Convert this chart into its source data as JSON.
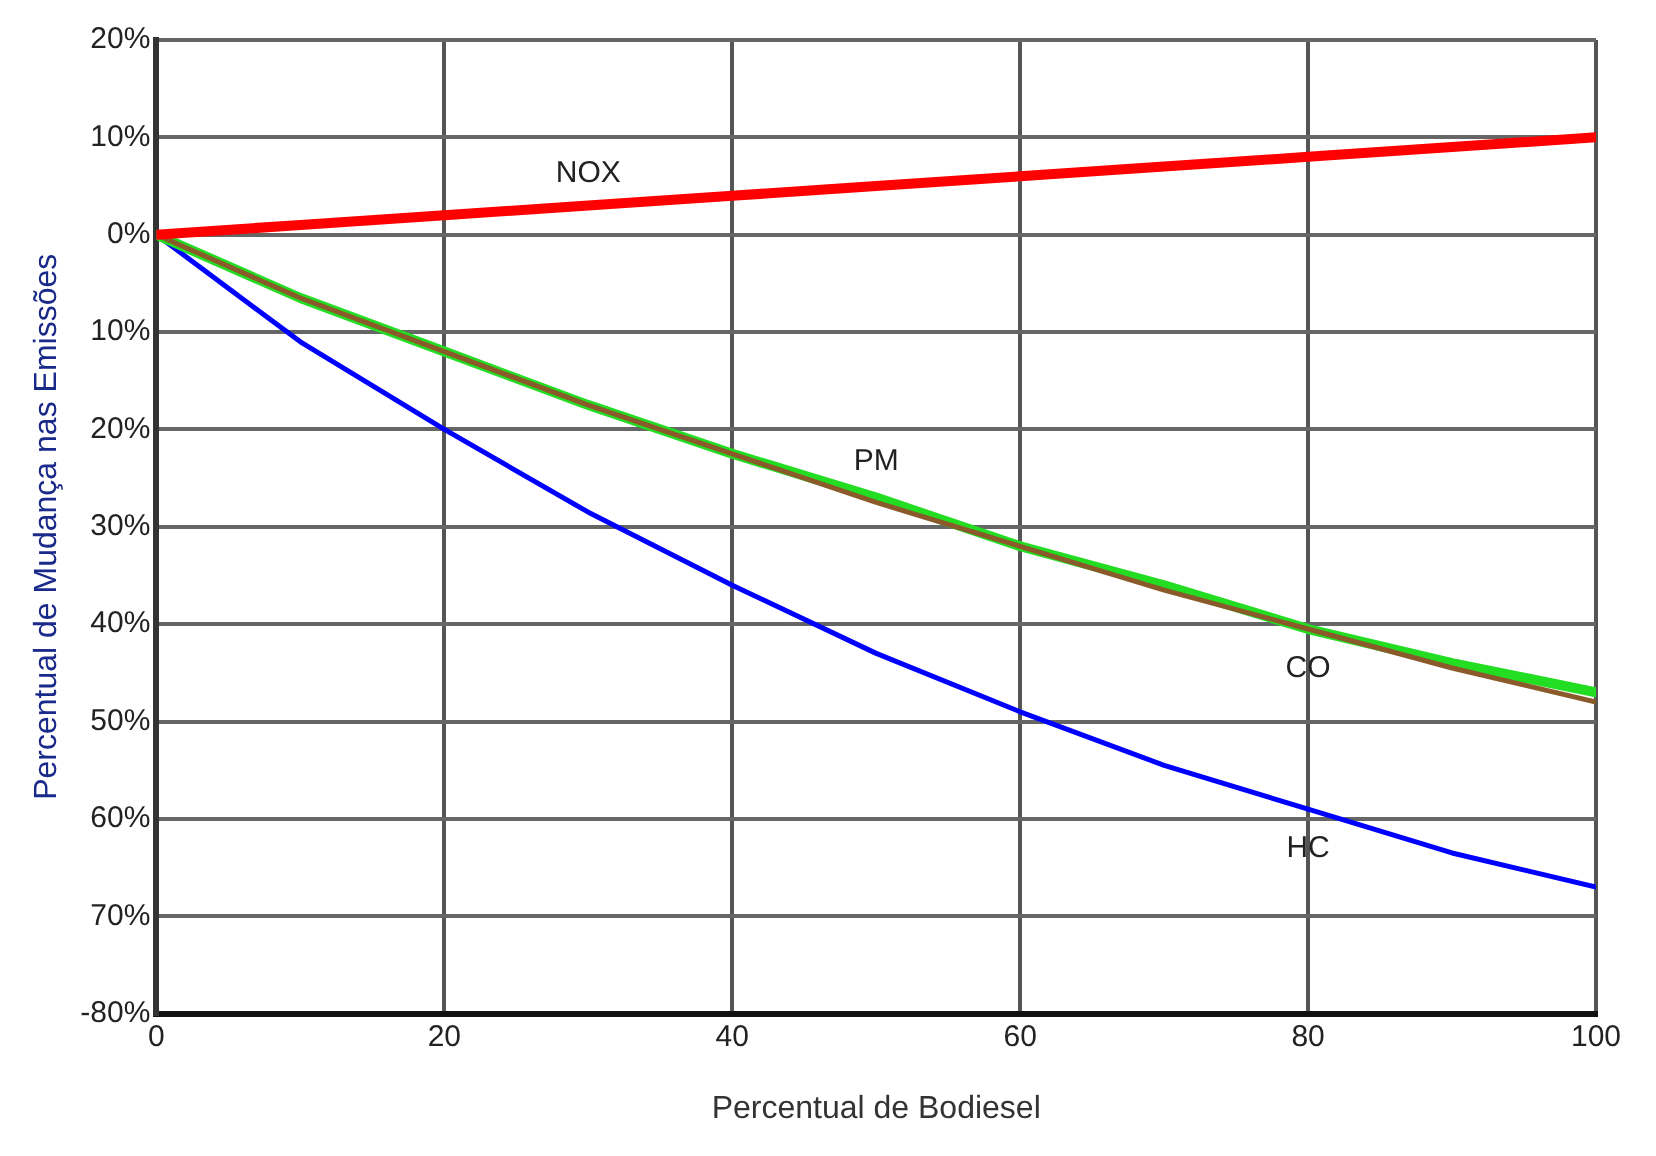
{
  "chart_data": {
    "type": "line",
    "xlabel": "Percentual de Bodiesel",
    "ylabel": "Percentual de Mudança nas Emissões",
    "x": [
      0,
      10,
      20,
      30,
      40,
      50,
      60,
      70,
      80,
      90,
      100
    ],
    "series": [
      {
        "name": "NOX",
        "color": "#ff0000",
        "values": [
          0,
          1,
          2,
          3,
          4,
          5,
          6,
          7,
          8,
          9,
          10
        ]
      },
      {
        "name": "CO",
        "color": "#8b5a2b",
        "values": [
          0,
          -6.5,
          -12,
          -17.5,
          -22.5,
          -27.5,
          -32,
          -36.5,
          -40.5,
          -44.5,
          -48
        ]
      },
      {
        "name": "PM",
        "color": "#22dd22",
        "values": [
          0,
          -6.5,
          -12,
          -17.5,
          -22.5,
          -27,
          -32,
          -36,
          -40.5,
          -44,
          -47
        ]
      },
      {
        "name": "HC",
        "color": "#0000ff",
        "values": [
          0,
          -11,
          -20,
          -28.5,
          -36,
          -43,
          -49,
          -54.5,
          -59,
          -63.5,
          -67
        ]
      }
    ],
    "xlim": [
      0,
      100
    ],
    "xticks": [
      0,
      20,
      40,
      60,
      80,
      100
    ],
    "ylim": [
      -80,
      20
    ],
    "yticks": [
      {
        "value": 20,
        "label": "20%"
      },
      {
        "value": 10,
        "label": "10%"
      },
      {
        "value": 0,
        "label": "0%"
      },
      {
        "value": -10,
        "label": "10%"
      },
      {
        "value": -20,
        "label": "20%"
      },
      {
        "value": -30,
        "label": "30%"
      },
      {
        "value": -40,
        "label": "40%"
      },
      {
        "value": -50,
        "label": "50%"
      },
      {
        "value": -60,
        "label": "60%"
      },
      {
        "value": -70,
        "label": "70%"
      },
      {
        "value": -80,
        "label": "-80%"
      }
    ],
    "grid": true,
    "legend": false,
    "marker": "none",
    "line_style": "solid"
  }
}
